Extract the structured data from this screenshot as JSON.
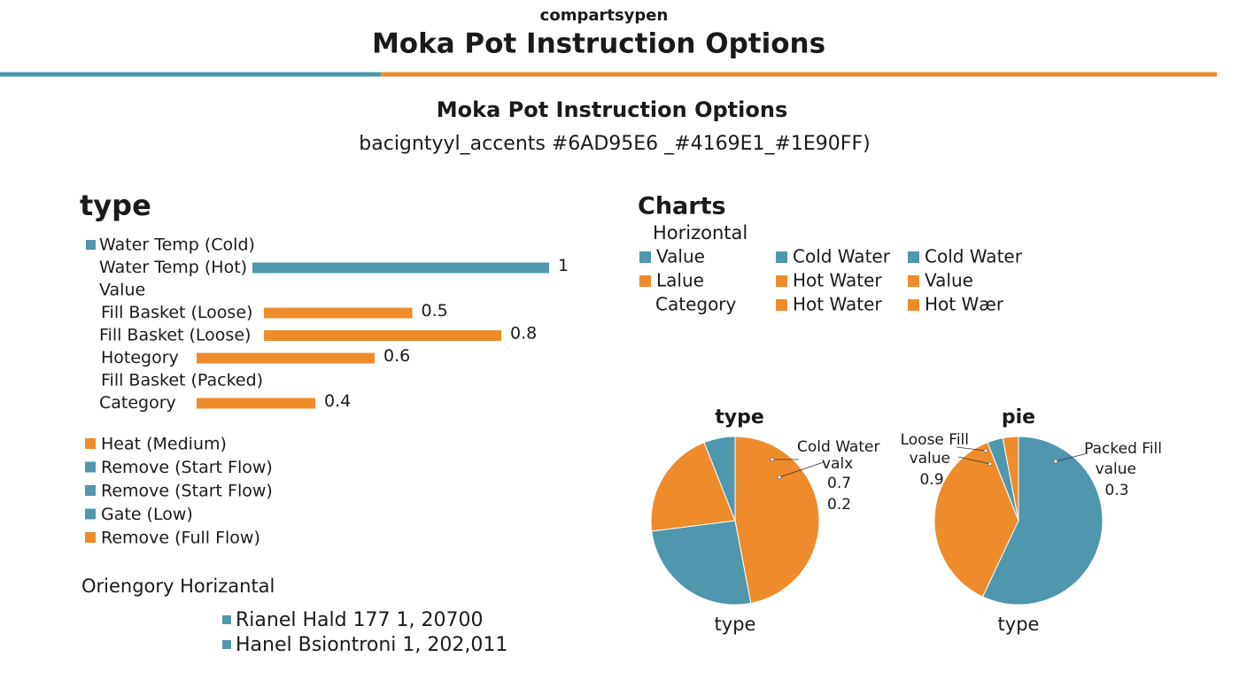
{
  "header": {
    "kicker": "compartsypen",
    "title": "Moka Pot Instruction Options"
  },
  "intro": {
    "title": "Moka Pot Instruction Options",
    "subtitle": "bacigntyyl_accents #6AD95E6 _#4169E1_#1E90FF)"
  },
  "chart_data": [
    {
      "type": "bar",
      "orientation": "horizontal",
      "title": "type",
      "categories": [
        "Water Temp (Cold)",
        "Water Temp (Hot)",
        "Value",
        "Fill Basket (Loose)",
        "Fill Basket (Loose)",
        "Hotegory",
        "Fill Basket (Packed)",
        "Category"
      ],
      "values": [
        null,
        1,
        null,
        0.5,
        0.8,
        0.6,
        null,
        0.4
      ],
      "colors": [
        "#4f97ad",
        "#4f97ad",
        null,
        "#ee8c2c",
        "#ee8c2c",
        "#ee8c2c",
        null,
        "#ee8c2c"
      ]
    },
    {
      "type": "pie",
      "title": "type",
      "caption": "type",
      "values": [
        47,
        26,
        21,
        6
      ],
      "colors": [
        "#ee8c2c",
        "#4f97ad",
        "#ee8c2c",
        "#4f97ad"
      ],
      "annotations": [
        "Cold Water",
        "valx",
        "0.7",
        "0.2"
      ]
    },
    {
      "type": "pie",
      "title": "pie",
      "caption": "type",
      "values": [
        57,
        37,
        3,
        3
      ],
      "colors": [
        "#4f97ad",
        "#ee8c2c",
        "#4f97ad",
        "#ee8c2c"
      ],
      "annotations": [
        "Loose Fill",
        "value",
        "0.9",
        "Packed Fill",
        "value",
        "0.3"
      ]
    }
  ],
  "left_legend": {
    "items": [
      {
        "label": "Heat (Medium)",
        "color": "#ee8c2c"
      },
      {
        "label": "Remove (Start Flow)",
        "color": "#4f97ad"
      },
      {
        "label": "Remove (Start Flow)",
        "color": "#4f97ad"
      },
      {
        "label": "Gate (Low)",
        "color": "#4f97ad"
      },
      {
        "label": "Remove (Full Flow)",
        "color": "#ee8c2c"
      }
    ]
  },
  "footer_list": {
    "title": "Oriengory Horizantal",
    "items": [
      {
        "label": "Rianel Hald 177 1, 20700",
        "color": "#4f97ad"
      },
      {
        "label": "Hanel Bsiontroni 1, 202,011",
        "color": "#4f97ad"
      }
    ]
  },
  "right_legend": {
    "title": "Charts",
    "subtitle": "Horizontal",
    "items": [
      {
        "label": "Value",
        "color": "#4f97ad"
      },
      {
        "label": "Lalue",
        "color": "#ee8c2c"
      },
      {
        "label": "Category"
      },
      {
        "label": "Cold Water",
        "color": "#4f97ad"
      },
      {
        "label": "Hot Water",
        "color": "#ee8c2c"
      },
      {
        "label": "Hot Water",
        "color": "#ee8c2c"
      },
      {
        "label": "Cold Water",
        "color": "#4f97ad"
      },
      {
        "label": "Value",
        "color": "#ee8c2c"
      },
      {
        "label": "Hot Wær",
        "color": "#ee8c2c"
      }
    ]
  }
}
